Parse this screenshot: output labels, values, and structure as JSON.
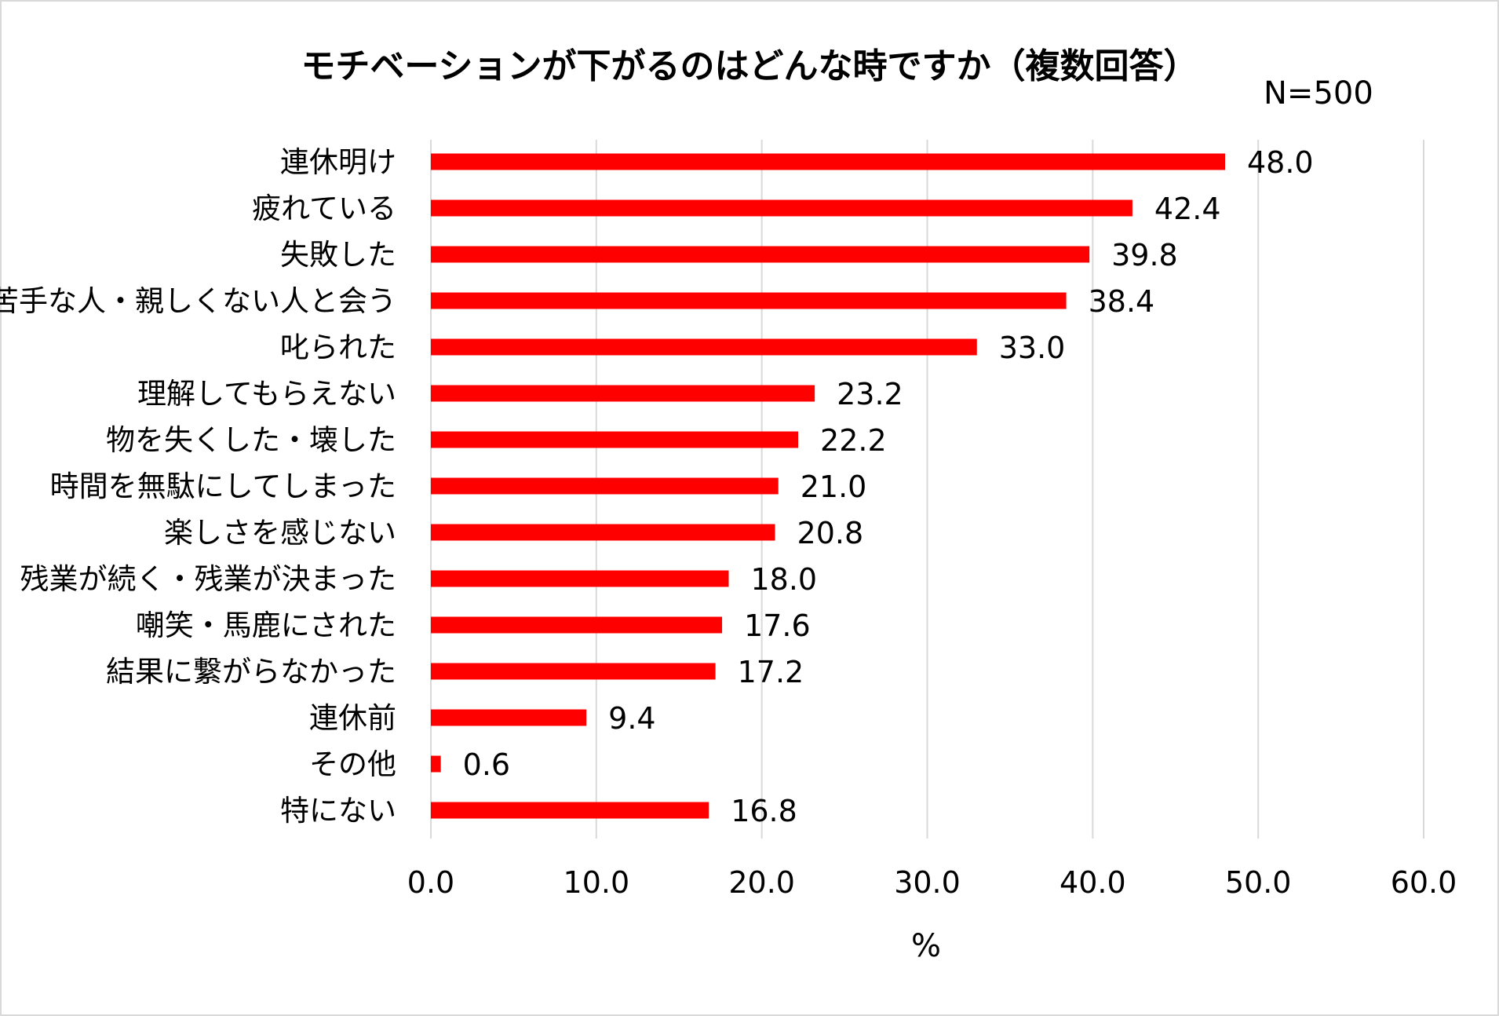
{
  "chart_data": {
    "type": "bar",
    "orientation": "horizontal",
    "title": "モチベーションが下がるのはどんな時ですか（複数回答）",
    "subtitle": "N=500",
    "xlabel": "%",
    "ylabel": "",
    "xlim": [
      0,
      60
    ],
    "ticks": [
      "0.0",
      "10.0",
      "20.0",
      "30.0",
      "40.0",
      "50.0",
      "60.0"
    ],
    "grid": true,
    "legend": "none",
    "bar_color": "#ff0000",
    "grid_color": "#d9d9d9",
    "categories": [
      "連休明け",
      "疲れている",
      "失敗した",
      "苦手な人・親しくない人と会う",
      "叱られた",
      "理解してもらえない",
      "物を失くした・壊した",
      "時間を無駄にしてしまった",
      "楽しさを感じない",
      "残業が続く・残業が決まった",
      "嘲笑・馬鹿にされた",
      "結果に繋がらなかった",
      "連休前",
      "その他",
      "特にない"
    ],
    "values": [
      48.0,
      42.4,
      39.8,
      38.4,
      33.0,
      23.2,
      22.2,
      21.0,
      20.8,
      18.0,
      17.6,
      17.2,
      9.4,
      0.6,
      16.8
    ],
    "value_labels": [
      "48.0",
      "42.4",
      "39.8",
      "38.4",
      "33.0",
      "23.2",
      "22.2",
      "21.0",
      "20.8",
      "18.0",
      "17.6",
      "17.2",
      "9.4",
      "0.6",
      "16.8"
    ]
  }
}
